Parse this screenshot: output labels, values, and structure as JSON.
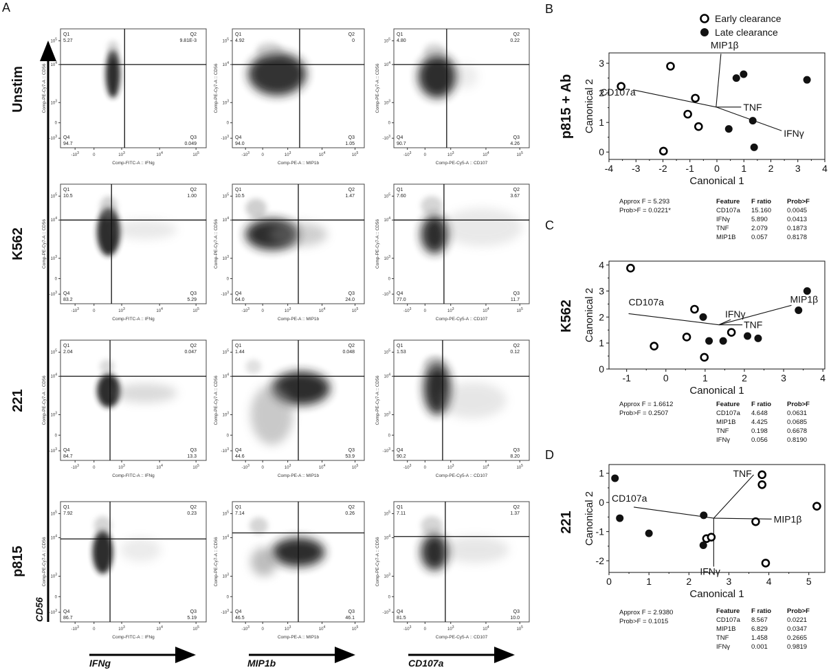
{
  "figure": {
    "panel_letters": [
      "A",
      "B",
      "C",
      "D"
    ],
    "row_axis_label": "CD56",
    "column_axis_labels": [
      "IFNg",
      "MIP1b",
      "CD107a"
    ]
  },
  "chart_data": [
    {
      "type": "scatter",
      "panel": "A",
      "subtype": "flow cytometry quadrant density plots",
      "rows": [
        "Unstim",
        "K562",
        "221",
        "p815"
      ],
      "columns": [
        {
          "marker": "IFNg",
          "x_axis_label": "Comp-FITC-A :: IFNg"
        },
        {
          "marker": "MIP1b",
          "x_axis_label": "Comp-PE-A :: MIP1b"
        },
        {
          "marker": "CD107a",
          "x_axis_label": "Comp-PE-Cy5-A :: CD107"
        }
      ],
      "y_axis_label": "Comp-PE-Cy7-A :: CD56",
      "x_ticks": [
        "-10^3",
        "0",
        "10^3",
        "10^4",
        "10^5"
      ],
      "y_ticks": [
        "10^5",
        "10^4",
        "10^3",
        "0",
        "-10^3"
      ],
      "quadrant_names": [
        "Q1",
        "Q2",
        "Q3",
        "Q4"
      ],
      "plots": [
        [
          {
            "Q1": "5.27",
            "Q2": "9.81E-3",
            "Q3": "0.049",
            "Q4": "94.7"
          },
          {
            "Q1": "4.92",
            "Q2": "0",
            "Q3": "1.05",
            "Q4": "94.0"
          },
          {
            "Q1": "4.80",
            "Q2": "0.22",
            "Q3": "4.26",
            "Q4": "90.7"
          }
        ],
        [
          {
            "Q1": "10.5",
            "Q2": "1.00",
            "Q3": "5.29",
            "Q4": "83.2"
          },
          {
            "Q1": "10.5",
            "Q2": "1.47",
            "Q3": "24.0",
            "Q4": "64.0"
          },
          {
            "Q1": "7.60",
            "Q2": "3.67",
            "Q3": "11.7",
            "Q4": "77.0"
          }
        ],
        [
          {
            "Q1": "2.04",
            "Q2": "0.047",
            "Q3": "13.3",
            "Q4": "84.7"
          },
          {
            "Q1": "1.44",
            "Q2": "0.048",
            "Q3": "53.9",
            "Q4": "44.6"
          },
          {
            "Q1": "1.53",
            "Q2": "0.12",
            "Q3": "8.20",
            "Q4": "90.2"
          }
        ],
        [
          {
            "Q1": "7.92",
            "Q2": "0.23",
            "Q3": "5.19",
            "Q4": "86.7"
          },
          {
            "Q1": "7.14",
            "Q2": "0.26",
            "Q3": "46.1",
            "Q4": "46.5"
          },
          {
            "Q1": "7.11",
            "Q2": "1.37",
            "Q3": "10.0",
            "Q4": "81.5"
          }
        ]
      ]
    },
    {
      "type": "scatter",
      "panel": "B",
      "row_label": "p815 + Ab",
      "xlabel": "Canonical 1",
      "ylabel": "Canonical 2",
      "xlim": [
        -4,
        4
      ],
      "ylim": [
        -0.25,
        3.35
      ],
      "xticks": [
        -4,
        -3,
        -2,
        -1,
        0,
        1,
        2,
        3,
        4
      ],
      "yticks": [
        0,
        1,
        2,
        3
      ],
      "legend": {
        "position": "top-right",
        "entries": [
          {
            "name": "Early clearance",
            "marker": "open-circle"
          },
          {
            "name": "Late clearance",
            "marker": "filled-circle"
          }
        ]
      },
      "series": [
        {
          "name": "Early clearance",
          "points": [
            [
              -3.55,
              2.22
            ],
            [
              -1.72,
              2.9
            ],
            [
              -0.8,
              1.82
            ],
            [
              -1.08,
              1.28
            ],
            [
              -0.68,
              0.86
            ],
            [
              -1.98,
              0.03
            ]
          ]
        },
        {
          "name": "Late clearance",
          "points": [
            [
              0.72,
              2.5
            ],
            [
              0.99,
              2.63
            ],
            [
              3.34,
              2.44
            ],
            [
              1.33,
              1.06
            ],
            [
              0.44,
              0.78
            ],
            [
              1.38,
              0.16
            ]
          ]
        }
      ],
      "vectors": {
        "origin": [
          -0.03,
          1.52
        ],
        "items": [
          {
            "name": "CD107a",
            "end": [
              -3.1,
              2.1
            ]
          },
          {
            "name": "MIP1β",
            "end": [
              0.15,
              3.32
            ]
          },
          {
            "name": "TNF",
            "end": [
              0.9,
              1.52
            ]
          },
          {
            "name": "IFNγ",
            "end": [
              2.4,
              0.72
            ]
          }
        ]
      },
      "stats": {
        "approx_f": "Approx F = 5.293",
        "prob_f": "Prob>F = 0.0221*"
      },
      "table": {
        "headers": [
          "Feature",
          "F ratio",
          "Prob>F"
        ],
        "rows": [
          [
            "CD107a",
            "15.160",
            "0.0045"
          ],
          [
            "IFNγ",
            "5.890",
            "0.0413"
          ],
          [
            "TNF",
            "2.079",
            "0.1873"
          ],
          [
            "MIP1B",
            "0.057",
            "0.8178"
          ]
        ]
      }
    },
    {
      "type": "scatter",
      "panel": "C",
      "row_label": "K562",
      "xlabel": "Canonical 1",
      "ylabel": "Canonical 2",
      "xlim": [
        -1.45,
        4.05
      ],
      "ylim": [
        0,
        4.15
      ],
      "xticks": [
        -1,
        0,
        1,
        2,
        3,
        4
      ],
      "yticks": [
        0,
        1,
        2,
        3,
        4
      ],
      "series": [
        {
          "name": "Early clearance",
          "points": [
            [
              -0.9,
              3.88
            ],
            [
              0.73,
              2.3
            ],
            [
              0.53,
              1.23
            ],
            [
              -0.3,
              0.88
            ],
            [
              0.98,
              0.45
            ],
            [
              1.67,
              1.41
            ]
          ]
        },
        {
          "name": "Late clearance",
          "points": [
            [
              0.95,
              2.0
            ],
            [
              1.1,
              1.08
            ],
            [
              1.46,
              1.08
            ],
            [
              2.08,
              1.27
            ],
            [
              2.35,
              1.18
            ],
            [
              3.38,
              2.26
            ],
            [
              3.6,
              3.0
            ]
          ]
        }
      ],
      "vectors": {
        "origin": [
          1.35,
          1.7
        ],
        "items": [
          {
            "name": "CD107a",
            "end": [
              -0.95,
              2.13
            ]
          },
          {
            "name": "IFNγ",
            "end": [
              1.65,
              1.9
            ]
          },
          {
            "name": "TNF",
            "end": [
              1.95,
              1.7
            ]
          },
          {
            "name": "MIP1β",
            "end": [
              3.2,
              2.45
            ]
          }
        ]
      },
      "stats": {
        "approx_f": "Approx F = 1.6612",
        "prob_f": "Prob>F = 0.2507"
      },
      "table": {
        "headers": [
          "Feature",
          "F ratio",
          "Prob>F"
        ],
        "rows": [
          [
            "CD107a",
            "4.648",
            "0.0631"
          ],
          [
            "MIP1B",
            "4.425",
            "0.0685"
          ],
          [
            "TNF",
            "0.198",
            "0.6678"
          ],
          [
            "IFNγ",
            "0.056",
            "0.8190"
          ]
        ]
      }
    },
    {
      "type": "scatter",
      "panel": "D",
      "row_label": "221",
      "xlabel": "Canonical 1",
      "ylabel": "Canonical 2",
      "xlim": [
        0,
        5.4
      ],
      "ylim": [
        -2.4,
        1.3
      ],
      "xticks": [
        0,
        1,
        2,
        3,
        4,
        5
      ],
      "yticks": [
        -2,
        -1,
        0,
        1
      ],
      "series": [
        {
          "name": "Early clearance",
          "points": [
            [
              3.83,
              0.95
            ],
            [
              3.83,
              0.61
            ],
            [
              5.2,
              -0.13
            ],
            [
              3.67,
              -0.66
            ],
            [
              2.44,
              -1.24
            ],
            [
              2.56,
              -1.19
            ],
            [
              3.92,
              -2.08
            ]
          ]
        },
        {
          "name": "Late clearance",
          "points": [
            [
              0.15,
              0.83
            ],
            [
              0.27,
              -0.54
            ],
            [
              1.0,
              -1.06
            ],
            [
              2.37,
              -0.44
            ],
            [
              2.36,
              -1.47
            ]
          ]
        }
      ],
      "vectors": {
        "origin": [
          2.62,
          -0.54
        ],
        "items": [
          {
            "name": "CD107a",
            "end": [
              0.62,
              -0.16
            ]
          },
          {
            "name": "TNF",
            "end": [
              3.62,
              0.95
            ]
          },
          {
            "name": "MIP1β",
            "end": [
              4.07,
              -0.57
            ]
          },
          {
            "name": "IFNγ",
            "end": [
              2.62,
              -2.2
            ]
          }
        ]
      },
      "stats": {
        "approx_f": "Approx F = 2.9380",
        "prob_f": "Prob>F = 0.1015"
      },
      "table": {
        "headers": [
          "Feature",
          "F ratio",
          "Prob>F"
        ],
        "rows": [
          [
            "CD107a",
            "8.567",
            "0.0221"
          ],
          [
            "MIP1B",
            "6.829",
            "0.0347"
          ],
          [
            "TNF",
            "1.458",
            "0.2665"
          ],
          [
            "IFNγ",
            "0.001",
            "0.9819"
          ]
        ]
      }
    }
  ]
}
